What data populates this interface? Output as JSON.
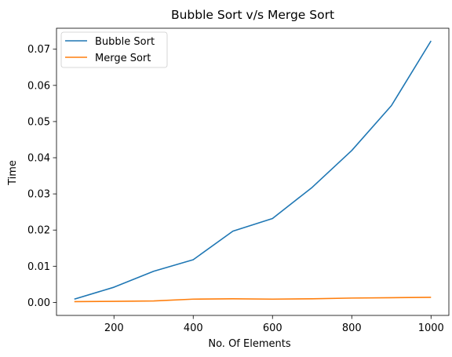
{
  "chart_data": {
    "type": "line",
    "title": "Bubble Sort v/s Merge Sort",
    "xlabel": "No. Of Elements",
    "ylabel": "Time",
    "xlim": [
      55,
      1045
    ],
    "ylim": [
      -0.0036,
      0.0758
    ],
    "xticks": [
      200,
      400,
      600,
      800,
      1000
    ],
    "xtick_labels": [
      "200",
      "400",
      "600",
      "800",
      "1000"
    ],
    "yticks": [
      0.0,
      0.01,
      0.02,
      0.03,
      0.04,
      0.05,
      0.06,
      0.07
    ],
    "ytick_labels": [
      "0.00",
      "0.01",
      "0.02",
      "0.03",
      "0.04",
      "0.05",
      "0.06",
      "0.07"
    ],
    "grid": false,
    "legend_position": "top-left",
    "x": [
      100,
      200,
      300,
      400,
      500,
      600,
      700,
      800,
      900,
      1000
    ],
    "series": [
      {
        "name": "Bubble Sort",
        "color": "#1f77b4",
        "values": [
          0.0009,
          0.0042,
          0.0086,
          0.0118,
          0.0197,
          0.0232,
          0.0318,
          0.042,
          0.0544,
          0.0723
        ]
      },
      {
        "name": "Merge Sort",
        "color": "#ff7f0e",
        "values": [
          0.0002,
          0.0003,
          0.0004,
          0.0009,
          0.001,
          0.0009,
          0.001,
          0.0012,
          0.0013,
          0.0014
        ]
      }
    ]
  }
}
